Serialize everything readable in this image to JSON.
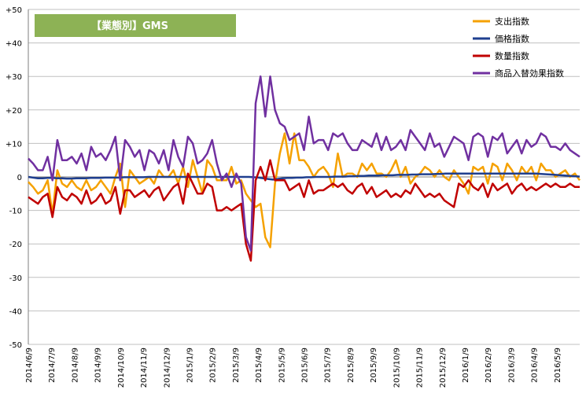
{
  "chart_data": {
    "type": "line",
    "title": "【業態別】GMS",
    "ylim": [
      -50,
      50
    ],
    "yticks": [
      50,
      40,
      30,
      20,
      10,
      0,
      -10,
      -20,
      -30,
      -40,
      -50
    ],
    "ytick_labels": [
      "+50",
      "+40",
      "+30",
      "+20",
      "+10",
      "0",
      "-10",
      "-20",
      "-30",
      "-40",
      "-50"
    ],
    "x_labels": [
      "2014/6/9",
      "2014/7/9",
      "2014/8/9",
      "2014/9/9",
      "2014/10/9",
      "2014/11/9",
      "2014/12/9",
      "2015/1/9",
      "2015/2/9",
      "2015/3/9",
      "2015/4/9",
      "2015/5/9",
      "2015/6/9",
      "2015/7/9",
      "2015/8/9",
      "2015/9/9",
      "2015/10/9",
      "2015/11/9",
      "2015/12/9",
      "2016/1/9",
      "2016/2/9",
      "2016/3/9",
      "2016/4/9",
      "2016/5/9"
    ],
    "grid": "horizontal",
    "legend_position": "top-right",
    "colors": {
      "title_box": "#8db255",
      "gridline": "#c0c0c0",
      "zero_line": "#7f7f7f"
    },
    "series": [
      {
        "name": "支出指数",
        "color": "#f5a100",
        "values": [
          -1.5,
          -3,
          -5,
          -4,
          -1,
          -11,
          2,
          -2,
          -3,
          -1,
          -3,
          -4,
          -1,
          -4,
          -3,
          -1,
          -3,
          -5,
          0,
          4,
          -9,
          2,
          0,
          -2,
          -1,
          0,
          -2,
          2,
          0,
          0,
          2,
          -2,
          3,
          -3,
          5,
          0,
          -5,
          5,
          3,
          -1,
          -1,
          -1,
          3,
          -2,
          -1,
          -5,
          -7,
          -9,
          -8,
          -18,
          -21,
          -2,
          7,
          13,
          4,
          13,
          5,
          5,
          3,
          0,
          2,
          3,
          1,
          -3,
          7,
          0,
          1,
          1,
          0,
          4,
          2,
          4,
          1,
          1,
          0,
          2,
          5,
          0,
          3,
          -2,
          0,
          1,
          3,
          2,
          0,
          2,
          0,
          -1,
          2,
          0,
          -2,
          -5,
          3,
          2,
          3,
          -2,
          4,
          3,
          -1,
          4,
          2,
          -1,
          3,
          1,
          3,
          -1,
          4,
          2,
          2,
          0,
          1,
          2,
          0,
          1,
          -1
        ]
      },
      {
        "name": "価格指数",
        "color": "#1f3f8f",
        "values": [
          0,
          -0.2,
          -0.4,
          -0.4,
          -0.3,
          -0.3,
          -0.4,
          -0.4,
          -0.5,
          -0.5,
          -0.4,
          -0.4,
          -0.4,
          -0.3,
          -0.3,
          -0.3,
          -0.2,
          -0.2,
          -0.2,
          -0.2,
          -0.1,
          -0.1,
          -0.1,
          -0.1,
          -0.1,
          0,
          0,
          0,
          0,
          0,
          0,
          0,
          0,
          0,
          0,
          0,
          0,
          0,
          0,
          0,
          0,
          0,
          0,
          0,
          0,
          0,
          0,
          -0.1,
          -0.2,
          -0.4,
          -0.6,
          -0.8,
          -0.6,
          -0.4,
          -0.3,
          -0.3,
          -0.2,
          -0.2,
          -0.1,
          -0.1,
          0,
          0,
          0,
          0,
          0.1,
          0.1,
          0.1,
          0.2,
          0.2,
          0.3,
          0.3,
          0.4,
          0.4,
          0.4,
          0.5,
          0.5,
          0.5,
          0.6,
          0.6,
          0.6,
          0.7,
          0.7,
          0.8,
          0.8,
          0.8,
          0.9,
          0.9,
          1,
          1,
          1,
          1,
          1,
          1,
          1,
          1,
          1,
          1,
          1,
          1,
          1,
          1,
          1,
          1,
          1,
          1,
          1,
          1,
          0.9,
          0.8,
          0.7,
          0.6,
          0.5,
          0.4,
          0.3,
          0.2,
          0.1
        ]
      },
      {
        "name": "数量指数",
        "color": "#c00000",
        "values": [
          -6,
          -7,
          -8,
          -6,
          -5,
          -12,
          -3,
          -6,
          -7,
          -5,
          -6,
          -8,
          -4,
          -8,
          -7,
          -5,
          -8,
          -7,
          -3,
          -11,
          -4,
          -4,
          -6,
          -5,
          -4,
          -6,
          -4,
          -3,
          -7,
          -5,
          -3,
          -2,
          -8,
          1,
          -2,
          -5,
          -5,
          -2,
          -3,
          -10,
          -10,
          -9,
          -10,
          -9,
          -8,
          -20,
          -25,
          -1,
          3,
          -1,
          5,
          -1,
          -1,
          -1,
          -4,
          -3,
          -2,
          -6,
          -1,
          -5,
          -4,
          -4,
          -3,
          -2,
          -3,
          -2,
          -4,
          -5,
          -3,
          -2,
          -5,
          -3,
          -6,
          -5,
          -4,
          -6,
          -5,
          -6,
          -4,
          -5,
          -2,
          -4,
          -6,
          -5,
          -6,
          -5,
          -7,
          -8,
          -9,
          -2,
          -3,
          -1,
          -3,
          -4,
          -2,
          -6,
          -2,
          -4,
          -3,
          -2,
          -5,
          -3,
          -2,
          -4,
          -3,
          -4,
          -3,
          -2,
          -3,
          -2,
          -3,
          -3,
          -2,
          -3,
          -3
        ]
      },
      {
        "name": "商品入替効果指数",
        "color": "#7030a0",
        "values": [
          5.5,
          4,
          2,
          2,
          6,
          -1,
          11,
          5,
          5,
          6,
          4,
          7,
          2,
          9,
          6,
          7,
          5,
          8,
          12,
          -1,
          11,
          9,
          6,
          8,
          2,
          8,
          7,
          4,
          8,
          2,
          11,
          6,
          3,
          12,
          10,
          4,
          5,
          7,
          11,
          4,
          -1,
          1,
          -3,
          1,
          -2,
          -18,
          -22,
          22,
          30,
          18,
          30,
          20,
          16,
          15,
          11,
          12,
          13,
          8,
          18,
          10,
          11,
          11,
          8,
          13,
          12,
          13,
          10,
          8,
          8,
          11,
          10,
          9,
          13,
          8,
          12,
          8,
          9,
          11,
          8,
          14,
          12,
          10,
          8,
          13,
          9,
          10,
          6,
          9,
          12,
          11,
          10,
          5,
          12,
          13,
          12,
          6,
          12,
          11,
          13,
          7,
          9,
          11,
          7,
          11,
          9,
          10,
          13,
          12,
          9,
          9,
          8,
          10,
          8,
          7,
          6
        ]
      }
    ]
  }
}
